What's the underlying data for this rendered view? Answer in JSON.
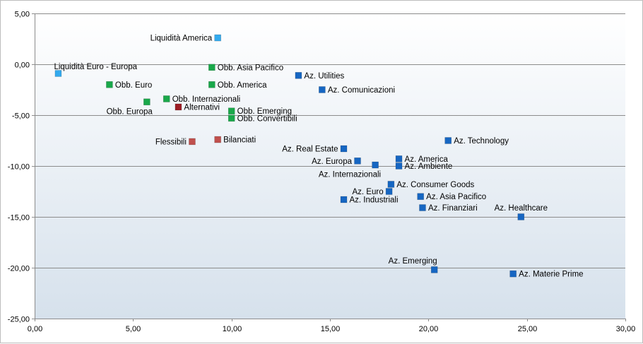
{
  "chart_data": {
    "type": "scatter",
    "title": "",
    "xlabel": "",
    "ylabel": "",
    "xlim": [
      0,
      30
    ],
    "ylim": [
      -25,
      5
    ],
    "x_ticks": [
      "0,00",
      "5,00",
      "10,00",
      "15,00",
      "20,00",
      "25,00",
      "30,00"
    ],
    "y_ticks": [
      "5,00",
      "0,00",
      "-5,00",
      "-10,00",
      "-15,00",
      "-20,00",
      "-25,00"
    ],
    "grid": "horizontal",
    "legend": "none",
    "colors": {
      "liquidity": "#33aaee",
      "bonds": "#1aa84a",
      "alternative": "#9c1c24",
      "mixed": "#c0504d",
      "equity": "#1666c2"
    },
    "points": [
      {
        "label": "Liquidità America",
        "x": 9.3,
        "y": 2.6,
        "group": "liquidity",
        "pos": "left"
      },
      {
        "label": "Liquidità Euro - Europa",
        "x": 1.2,
        "y": -0.9,
        "group": "liquidity",
        "pos": "above-right"
      },
      {
        "label": "Obb. Asia Pacifico",
        "x": 9.0,
        "y": -0.3,
        "group": "bonds",
        "pos": "right"
      },
      {
        "label": "Obb. Euro",
        "x": 3.8,
        "y": -2.0,
        "group": "bonds",
        "pos": "right"
      },
      {
        "label": "Obb. America",
        "x": 9.0,
        "y": -2.0,
        "group": "bonds",
        "pos": "right"
      },
      {
        "label": "Obb. Internazionali",
        "x": 6.7,
        "y": -3.4,
        "group": "bonds",
        "pos": "right"
      },
      {
        "label": "Obb. Europa",
        "x": 5.7,
        "y": -3.7,
        "group": "bonds",
        "pos": "below-left"
      },
      {
        "label": "Obb. Emerging",
        "x": 10.0,
        "y": -4.6,
        "group": "bonds",
        "pos": "right"
      },
      {
        "label": "Obb. Convertibili",
        "x": 10.0,
        "y": -5.3,
        "group": "bonds",
        "pos": "right"
      },
      {
        "label": "Alternativi",
        "x": 7.3,
        "y": -4.2,
        "group": "alternative",
        "pos": "right"
      },
      {
        "label": "Flessibili",
        "x": 8.0,
        "y": -7.6,
        "group": "mixed",
        "pos": "left"
      },
      {
        "label": "Bilanciati",
        "x": 9.3,
        "y": -7.4,
        "group": "mixed",
        "pos": "right"
      },
      {
        "label": "Az. Utilities",
        "x": 13.4,
        "y": -1.1,
        "group": "equity",
        "pos": "right"
      },
      {
        "label": "Az. Comunicazioni",
        "x": 14.6,
        "y": -2.5,
        "group": "equity",
        "pos": "right"
      },
      {
        "label": "Az. Technology",
        "x": 21.0,
        "y": -7.5,
        "group": "equity",
        "pos": "right"
      },
      {
        "label": "Az. Real Estate",
        "x": 15.7,
        "y": -8.3,
        "group": "equity",
        "pos": "left"
      },
      {
        "label": "Az. Europa",
        "x": 16.4,
        "y": -9.5,
        "group": "equity",
        "pos": "left"
      },
      {
        "label": "Az. Internazionali",
        "x": 17.3,
        "y": -9.9,
        "group": "equity",
        "pos": "below-left"
      },
      {
        "label": "Az. America",
        "x": 18.5,
        "y": -9.3,
        "group": "equity",
        "pos": "right"
      },
      {
        "label": "Az. Ambiente",
        "x": 18.5,
        "y": -10.0,
        "group": "equity",
        "pos": "right"
      },
      {
        "label": "Az. Consumer Goods",
        "x": 18.1,
        "y": -11.8,
        "group": "equity",
        "pos": "right"
      },
      {
        "label": "Az. Euro",
        "x": 18.0,
        "y": -12.5,
        "group": "equity",
        "pos": "left"
      },
      {
        "label": "Az. Industriali",
        "x": 15.7,
        "y": -13.3,
        "group": "equity",
        "pos": "right"
      },
      {
        "label": "Az. Asia Pacifico",
        "x": 19.6,
        "y": -13.0,
        "group": "equity",
        "pos": "right"
      },
      {
        "label": "Az. Finanziari",
        "x": 19.7,
        "y": -14.1,
        "group": "equity",
        "pos": "right"
      },
      {
        "label": "Az. Healthcare",
        "x": 24.7,
        "y": -15.0,
        "group": "equity",
        "pos": "above"
      },
      {
        "label": "Az. Emerging",
        "x": 20.3,
        "y": -20.2,
        "group": "equity",
        "pos": "above-left"
      },
      {
        "label": "Az. Materie Prime",
        "x": 24.3,
        "y": -20.6,
        "group": "equity",
        "pos": "right"
      }
    ]
  }
}
